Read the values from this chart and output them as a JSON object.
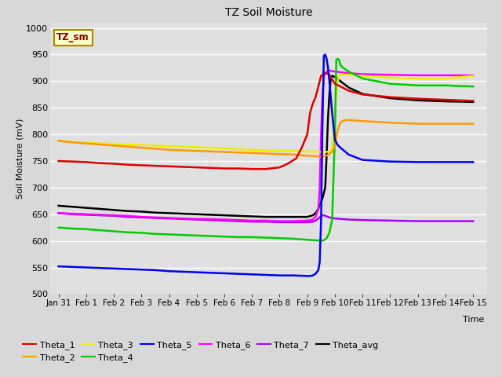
{
  "title": "TZ Soil Moisture",
  "xlabel": "Time",
  "ylabel": "Soil Moisture (mV)",
  "ylim": [
    500,
    1010
  ],
  "background_color": "#d8d8d8",
  "plot_bg_color": "#e0e0e0",
  "annotation_text": "TZ_sm",
  "annotation_bg": "#ffffcc",
  "annotation_fg": "#800000",
  "xtick_labels": [
    "Jan 31",
    "Feb 1",
    "Feb 2",
    "Feb 3",
    "Feb 4",
    "Feb 5",
    "Feb 6",
    "Feb 7",
    "Feb 8",
    "Feb 9",
    "Feb 10",
    "Feb 11",
    "Feb 12",
    "Feb 13",
    "Feb 14",
    "Feb 15"
  ],
  "ytick_values": [
    500,
    550,
    600,
    650,
    700,
    750,
    800,
    850,
    900,
    950,
    1000
  ],
  "series": {
    "Theta_1": {
      "color": "#dd0000",
      "points": [
        [
          0,
          750
        ],
        [
          0.5,
          749
        ],
        [
          1,
          748
        ],
        [
          1.5,
          746
        ],
        [
          2,
          745
        ],
        [
          2.5,
          743
        ],
        [
          3,
          742
        ],
        [
          3.5,
          741
        ],
        [
          4,
          740
        ],
        [
          4.5,
          739
        ],
        [
          5,
          738
        ],
        [
          5.5,
          737
        ],
        [
          6,
          736
        ],
        [
          6.5,
          736
        ],
        [
          7,
          735
        ],
        [
          7.5,
          735
        ],
        [
          8,
          738
        ],
        [
          8.3,
          745
        ],
        [
          8.6,
          755
        ],
        [
          8.8,
          775
        ],
        [
          9.0,
          800
        ],
        [
          9.1,
          840
        ],
        [
          9.2,
          858
        ],
        [
          9.3,
          870
        ],
        [
          9.5,
          910
        ],
        [
          9.6,
          914
        ],
        [
          9.7,
          915
        ],
        [
          9.8,
          912
        ],
        [
          10.0,
          895
        ],
        [
          10.2,
          890
        ],
        [
          10.5,
          882
        ],
        [
          11,
          875
        ],
        [
          12,
          870
        ],
        [
          13,
          867
        ],
        [
          14,
          865
        ],
        [
          15,
          863
        ]
      ]
    },
    "Theta_2": {
      "color": "#ff9900",
      "points": [
        [
          0,
          788
        ],
        [
          0.5,
          785
        ],
        [
          1,
          783
        ],
        [
          1.5,
          781
        ],
        [
          2,
          779
        ],
        [
          2.5,
          777
        ],
        [
          3,
          775
        ],
        [
          3.5,
          773
        ],
        [
          4,
          771
        ],
        [
          4.5,
          770
        ],
        [
          5,
          769
        ],
        [
          5.5,
          768
        ],
        [
          6,
          767
        ],
        [
          6.5,
          766
        ],
        [
          7,
          765
        ],
        [
          7.5,
          764
        ],
        [
          8,
          763
        ],
        [
          8.5,
          762
        ],
        [
          9,
          760
        ],
        [
          9.3,
          759
        ],
        [
          9.5,
          758
        ],
        [
          9.7,
          760
        ],
        [
          9.8,
          763
        ],
        [
          9.9,
          768
        ],
        [
          10.0,
          778
        ],
        [
          10.1,
          808
        ],
        [
          10.2,
          822
        ],
        [
          10.3,
          826
        ],
        [
          10.5,
          827
        ],
        [
          11,
          825
        ],
        [
          12,
          822
        ],
        [
          13,
          820
        ],
        [
          14,
          820
        ],
        [
          15,
          820
        ]
      ]
    },
    "Theta_3": {
      "color": "#eeee00",
      "points": [
        [
          0,
          788
        ],
        [
          0.5,
          786
        ],
        [
          1,
          784
        ],
        [
          1.5,
          783
        ],
        [
          2,
          782
        ],
        [
          2.5,
          781
        ],
        [
          3,
          780
        ],
        [
          3.5,
          779
        ],
        [
          4,
          778
        ],
        [
          4.5,
          777
        ],
        [
          5,
          776
        ],
        [
          5.5,
          775
        ],
        [
          6,
          774
        ],
        [
          6.5,
          772
        ],
        [
          7,
          771
        ],
        [
          7.5,
          770
        ],
        [
          8,
          769
        ],
        [
          8.5,
          769
        ],
        [
          9,
          768
        ],
        [
          9.3,
          768
        ],
        [
          9.5,
          767
        ],
        [
          9.7,
          767
        ],
        [
          9.8,
          768
        ],
        [
          9.9,
          770
        ],
        [
          10.0,
          855
        ],
        [
          10.05,
          875
        ],
        [
          10.1,
          900
        ],
        [
          10.15,
          910
        ],
        [
          10.2,
          912
        ],
        [
          10.3,
          912
        ],
        [
          10.5,
          912
        ],
        [
          11,
          910
        ],
        [
          12,
          907
        ],
        [
          13,
          905
        ],
        [
          14,
          905
        ],
        [
          15,
          910
        ]
      ]
    },
    "Theta_4": {
      "color": "#00cc00",
      "points": [
        [
          0,
          625
        ],
        [
          0.5,
          623
        ],
        [
          1,
          622
        ],
        [
          1.5,
          620
        ],
        [
          2,
          618
        ],
        [
          2.5,
          616
        ],
        [
          3,
          615
        ],
        [
          3.5,
          613
        ],
        [
          4,
          612
        ],
        [
          4.5,
          611
        ],
        [
          5,
          610
        ],
        [
          5.5,
          609
        ],
        [
          6,
          608
        ],
        [
          6.5,
          607
        ],
        [
          7,
          607
        ],
        [
          7.5,
          606
        ],
        [
          8,
          605
        ],
        [
          8.5,
          604
        ],
        [
          9,
          602
        ],
        [
          9.3,
          601
        ],
        [
          9.5,
          600
        ],
        [
          9.6,
          601
        ],
        [
          9.7,
          605
        ],
        [
          9.8,
          615
        ],
        [
          9.9,
          640
        ],
        [
          10.0,
          800
        ],
        [
          10.05,
          940
        ],
        [
          10.1,
          942
        ],
        [
          10.15,
          940
        ],
        [
          10.2,
          930
        ],
        [
          10.3,
          925
        ],
        [
          10.5,
          918
        ],
        [
          11,
          905
        ],
        [
          12,
          895
        ],
        [
          13,
          892
        ],
        [
          14,
          892
        ],
        [
          15,
          890
        ]
      ]
    },
    "Theta_5": {
      "color": "#0000ee",
      "points": [
        [
          0,
          552
        ],
        [
          0.5,
          551
        ],
        [
          1,
          550
        ],
        [
          1.5,
          549
        ],
        [
          2,
          548
        ],
        [
          2.5,
          547
        ],
        [
          3,
          546
        ],
        [
          3.5,
          545
        ],
        [
          4,
          543
        ],
        [
          4.5,
          542
        ],
        [
          5,
          541
        ],
        [
          5.5,
          540
        ],
        [
          6,
          539
        ],
        [
          6.5,
          538
        ],
        [
          7,
          537
        ],
        [
          7.5,
          536
        ],
        [
          8,
          535
        ],
        [
          8.5,
          535
        ],
        [
          9,
          534
        ],
        [
          9.1,
          534
        ],
        [
          9.2,
          535
        ],
        [
          9.3,
          538
        ],
        [
          9.4,
          545
        ],
        [
          9.45,
          560
        ],
        [
          9.5,
          640
        ],
        [
          9.55,
          820
        ],
        [
          9.6,
          948
        ],
        [
          9.65,
          950
        ],
        [
          9.7,
          942
        ],
        [
          9.75,
          925
        ],
        [
          9.8,
          900
        ],
        [
          9.9,
          840
        ],
        [
          10.0,
          790
        ],
        [
          10.1,
          780
        ],
        [
          10.2,
          775
        ],
        [
          10.5,
          762
        ],
        [
          11,
          752
        ],
        [
          12,
          749
        ],
        [
          13,
          748
        ],
        [
          14,
          748
        ],
        [
          15,
          748
        ]
      ]
    },
    "Theta_6": {
      "color": "#ff00ff",
      "points": [
        [
          0,
          652
        ],
        [
          0.5,
          651
        ],
        [
          1,
          650
        ],
        [
          1.5,
          649
        ],
        [
          2,
          648
        ],
        [
          2.5,
          647
        ],
        [
          3,
          645
        ],
        [
          3.5,
          644
        ],
        [
          4,
          643
        ],
        [
          4.5,
          642
        ],
        [
          5,
          641
        ],
        [
          5.5,
          641
        ],
        [
          6,
          640
        ],
        [
          6.5,
          639
        ],
        [
          7,
          638
        ],
        [
          7.5,
          638
        ],
        [
          8,
          637
        ],
        [
          8.5,
          637
        ],
        [
          9,
          638
        ],
        [
          9.2,
          640
        ],
        [
          9.3,
          645
        ],
        [
          9.4,
          660
        ],
        [
          9.45,
          700
        ],
        [
          9.5,
          800
        ],
        [
          9.55,
          870
        ],
        [
          9.6,
          908
        ],
        [
          9.65,
          915
        ],
        [
          9.7,
          918
        ],
        [
          9.75,
          920
        ],
        [
          9.8,
          920
        ],
        [
          10.0,
          918
        ],
        [
          10.5,
          915
        ],
        [
          11,
          913
        ],
        [
          12,
          912
        ],
        [
          13,
          911
        ],
        [
          14,
          911
        ],
        [
          15,
          911
        ]
      ]
    },
    "Theta_7": {
      "color": "#aa00ff",
      "points": [
        [
          0,
          652
        ],
        [
          0.5,
          650
        ],
        [
          1,
          649
        ],
        [
          1.5,
          648
        ],
        [
          2,
          647
        ],
        [
          2.5,
          645
        ],
        [
          3,
          644
        ],
        [
          3.5,
          643
        ],
        [
          4,
          642
        ],
        [
          4.5,
          641
        ],
        [
          5,
          640
        ],
        [
          5.5,
          639
        ],
        [
          6,
          638
        ],
        [
          6.5,
          637
        ],
        [
          7,
          636
        ],
        [
          7.5,
          636
        ],
        [
          8,
          635
        ],
        [
          8.5,
          635
        ],
        [
          9,
          635
        ],
        [
          9.2,
          636
        ],
        [
          9.3,
          638
        ],
        [
          9.35,
          640
        ],
        [
          9.4,
          642
        ],
        [
          9.45,
          644
        ],
        [
          9.5,
          646
        ],
        [
          9.55,
          648
        ],
        [
          9.6,
          648
        ],
        [
          9.65,
          647
        ],
        [
          9.7,
          646
        ],
        [
          9.75,
          645
        ],
        [
          9.8,
          644
        ],
        [
          10.0,
          642
        ],
        [
          10.5,
          640
        ],
        [
          11,
          639
        ],
        [
          12,
          638
        ],
        [
          13,
          637
        ],
        [
          14,
          637
        ],
        [
          15,
          637
        ]
      ]
    },
    "Theta_avg": {
      "color": "#000000",
      "points": [
        [
          0,
          666
        ],
        [
          0.5,
          664
        ],
        [
          1,
          662
        ],
        [
          1.5,
          660
        ],
        [
          2,
          658
        ],
        [
          2.5,
          656
        ],
        [
          3,
          655
        ],
        [
          3.5,
          653
        ],
        [
          4,
          652
        ],
        [
          4.5,
          651
        ],
        [
          5,
          650
        ],
        [
          5.5,
          649
        ],
        [
          6,
          648
        ],
        [
          6.5,
          647
        ],
        [
          7,
          646
        ],
        [
          7.5,
          645
        ],
        [
          8,
          645
        ],
        [
          8.5,
          645
        ],
        [
          9,
          645
        ],
        [
          9.2,
          648
        ],
        [
          9.3,
          652
        ],
        [
          9.4,
          660
        ],
        [
          9.45,
          668
        ],
        [
          9.5,
          672
        ],
        [
          9.55,
          680
        ],
        [
          9.6,
          690
        ],
        [
          9.65,
          700
        ],
        [
          9.7,
          760
        ],
        [
          9.75,
          830
        ],
        [
          9.8,
          875
        ],
        [
          9.85,
          905
        ],
        [
          9.9,
          910
        ],
        [
          10.0,
          908
        ],
        [
          10.2,
          900
        ],
        [
          10.5,
          888
        ],
        [
          11,
          876
        ],
        [
          12,
          868
        ],
        [
          13,
          864
        ],
        [
          14,
          862
        ],
        [
          15,
          861
        ]
      ]
    }
  },
  "legend_order": [
    "Theta_1",
    "Theta_2",
    "Theta_3",
    "Theta_4",
    "Theta_5",
    "Theta_6",
    "Theta_7",
    "Theta_avg"
  ]
}
